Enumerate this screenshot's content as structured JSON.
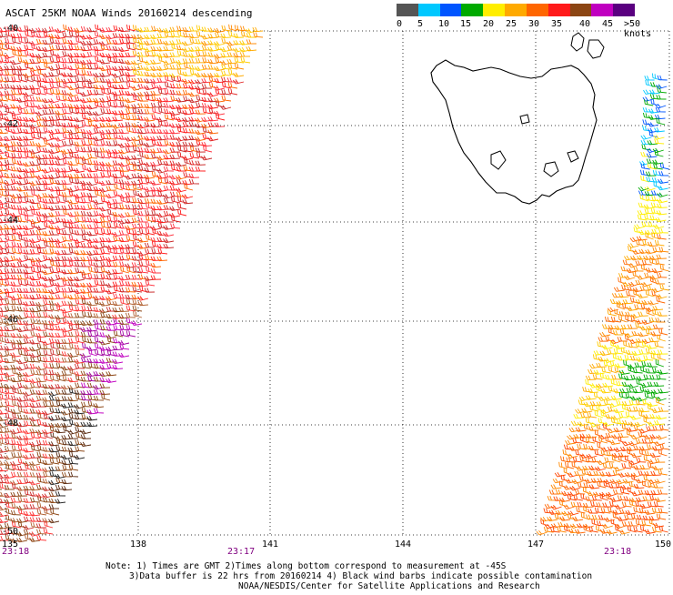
{
  "title": "ASCAT 25KM NOAA Winds 20160214 descending",
  "legend": {
    "colors": [
      "#555555",
      "#00c8ff",
      "#0055ff",
      "#00aa00",
      "#ffee00",
      "#ffaa00",
      "#ff6600",
      "#ff1a1a",
      "#8b4513",
      "#c000c0",
      "#5a0080"
    ],
    "labels": [
      "0",
      "5",
      "10",
      "15",
      "20",
      "25",
      "30",
      "35",
      "40",
      "45",
      ">50 knots"
    ]
  },
  "latitude_labels": [
    "-40",
    "-42",
    "-44",
    "-46",
    "-48",
    "-50"
  ],
  "longitude_labels": [
    "135",
    "138",
    "141",
    "144",
    "147",
    "150"
  ],
  "times": [
    "23:18",
    "23:17",
    "23:18"
  ],
  "notes": {
    "line1": "Note: 1) Times are GMT 2)Times along bottom correspond to measurement at -45S",
    "line2": "3)Data buffer is 22 hrs from 20160214 4) Black wind barbs indicate possible contamination",
    "line3": "NOAA/NESDIS/Center for Satellite Applications and Research"
  },
  "map": {
    "region": "Tasmania",
    "grid": "dotted",
    "lon_range": [
      135,
      150
    ],
    "lat_range": [
      -50,
      -40
    ]
  }
}
